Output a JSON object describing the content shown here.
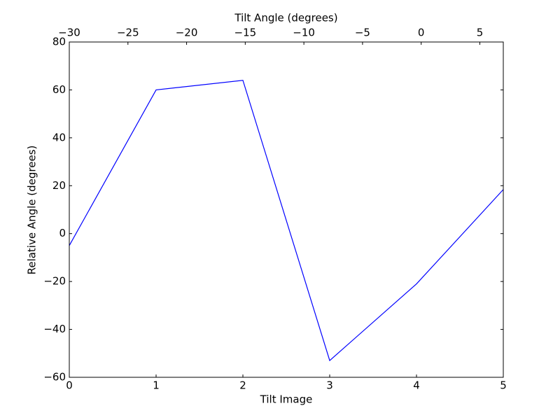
{
  "chart_data": {
    "type": "line",
    "xlabel": "Tilt Image",
    "x2label": "Tilt Angle (degrees)",
    "ylabel": "Relative Angle (degrees)",
    "x": [
      0,
      1,
      2,
      3,
      4,
      5
    ],
    "series": [
      {
        "color": "#0000ff",
        "values": [
          -5,
          60,
          64,
          -53,
          -21,
          18.4
        ]
      }
    ],
    "xlim": [
      0,
      5
    ],
    "xticks": [
      0,
      1,
      2,
      3,
      4,
      5
    ],
    "x2lim": [
      -30,
      7
    ],
    "x2ticks": [
      {
        "value": -30,
        "label": "−30"
      },
      {
        "value": -25,
        "label": "−25"
      },
      {
        "value": -20,
        "label": "−20"
      },
      {
        "value": -15,
        "label": "−15"
      },
      {
        "value": -10,
        "label": "−10"
      },
      {
        "value": -5,
        "label": "−5"
      },
      0,
      5
    ],
    "ylim": [
      -60,
      80
    ],
    "yticks": [
      {
        "value": -60,
        "label": "−60"
      },
      {
        "value": -40,
        "label": "−40"
      },
      {
        "value": -20,
        "label": "−20"
      },
      0,
      20,
      40,
      60,
      80
    ],
    "grid": false
  }
}
